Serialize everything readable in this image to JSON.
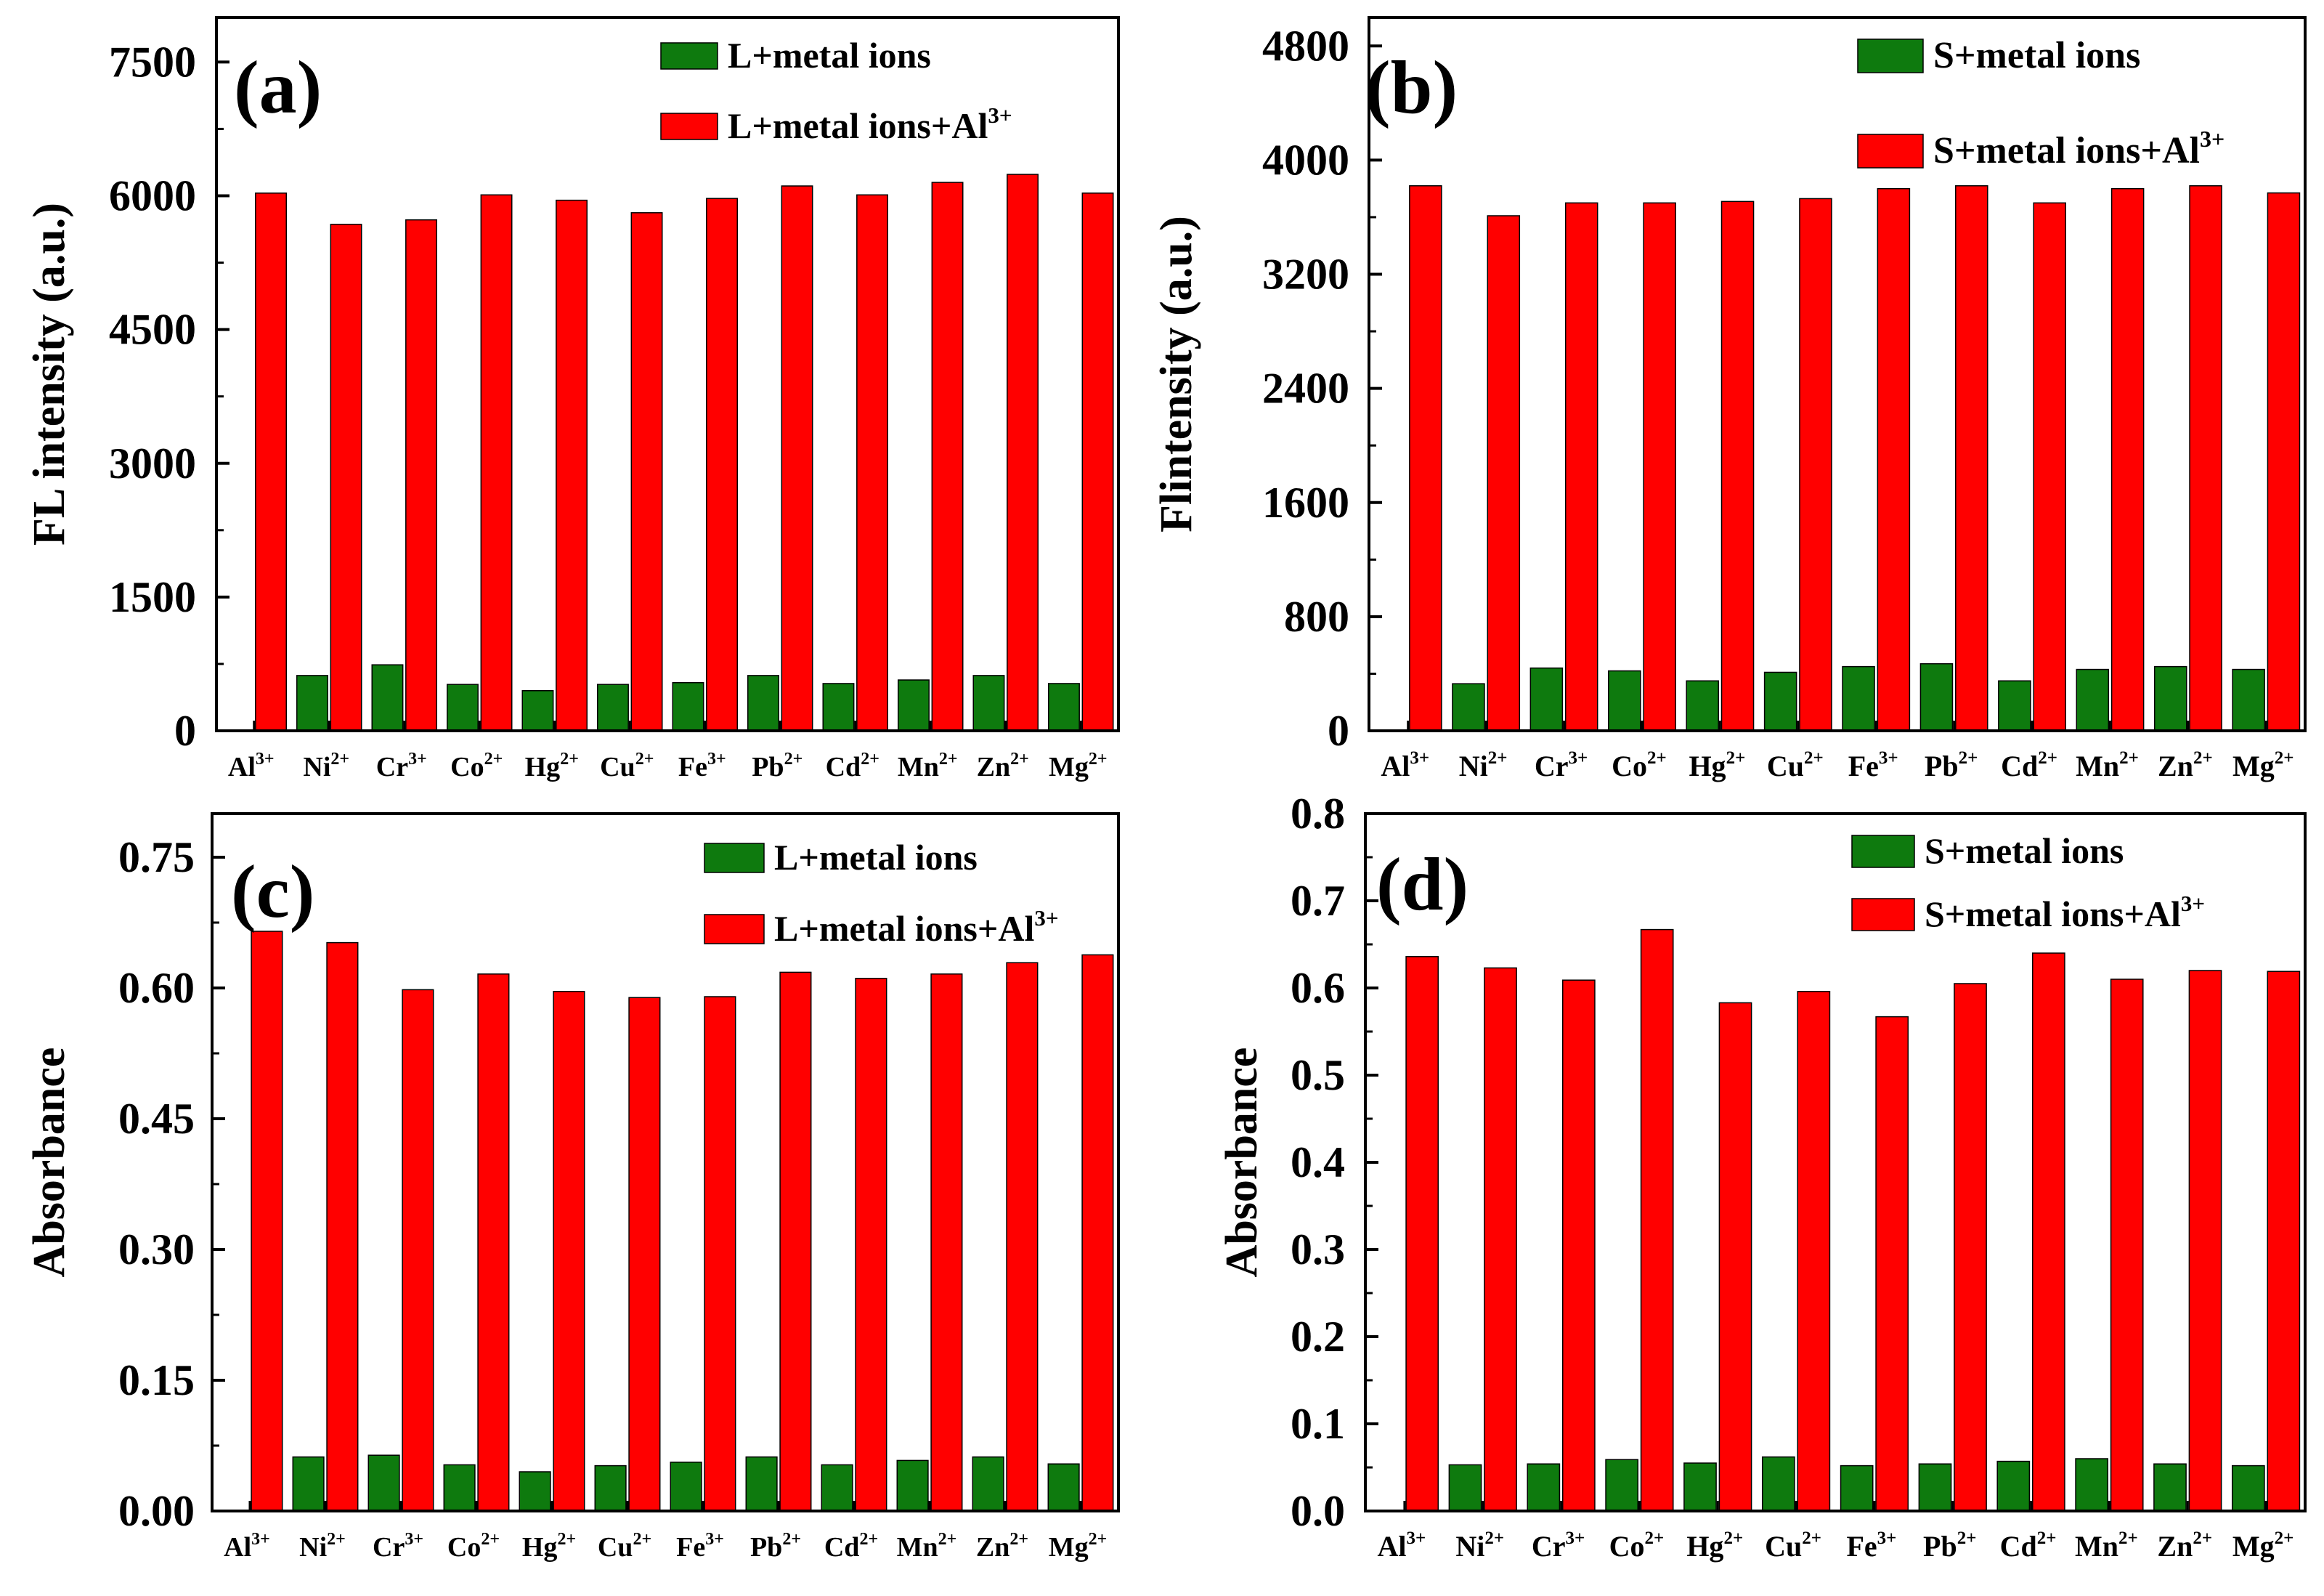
{
  "colors": {
    "series_green": "#0e7a0e",
    "series_red": "#ff0000",
    "axis": "#000000"
  },
  "chart_data": [
    {
      "type": "bar",
      "panel_label": "(a)",
      "ylabel": "FL intensity (a.u.)",
      "xlabel": "",
      "ylim": [
        0,
        8000
      ],
      "yticks": [
        "0",
        "1500",
        "3000",
        "4500",
        "6000",
        "7500"
      ],
      "ytick_values": [
        0,
        1500,
        3000,
        4500,
        6000,
        7500
      ],
      "categories": [
        {
          "base": "Al",
          "sup": "3+"
        },
        {
          "base": "Ni",
          "sup": "2+"
        },
        {
          "base": "Cr",
          "sup": "3+"
        },
        {
          "base": "Co",
          "sup": "2+"
        },
        {
          "base": "Hg",
          "sup": "2+"
        },
        {
          "base": "Cu",
          "sup": "2+"
        },
        {
          "base": "Fe",
          "sup": "3+"
        },
        {
          "base": "Pb",
          "sup": "2+"
        },
        {
          "base": "Cd",
          "sup": "2+"
        },
        {
          "base": "Mn",
          "sup": "2+"
        },
        {
          "base": "Zn",
          "sup": "2+"
        },
        {
          "base": "Mg",
          "sup": "2+"
        }
      ],
      "series": [
        {
          "name": "L+metal ions",
          "legend_base": "L+metal ions",
          "legend_sup": "",
          "color": "#0e7a0e",
          "values": [
            0,
            620,
            740,
            520,
            450,
            520,
            540,
            620,
            530,
            570,
            620,
            530
          ]
        },
        {
          "name": "L+metal ions+Al3+",
          "legend_base": "L+metal ions+Al",
          "legend_sup": "3+",
          "color": "#ff0000",
          "values": [
            6030,
            5680,
            5730,
            6010,
            5950,
            5810,
            5970,
            6110,
            6010,
            6150,
            6240,
            6030
          ]
        }
      ]
    },
    {
      "type": "bar",
      "panel_label": "(b)",
      "ylabel": "Flintensity (a.u.)",
      "xlabel": "",
      "ylim": [
        0,
        5000
      ],
      "yticks": [
        "0",
        "800",
        "1600",
        "2400",
        "3200",
        "4000",
        "4800"
      ],
      "ytick_values": [
        0,
        800,
        1600,
        2400,
        3200,
        4000,
        4800
      ],
      "categories": [
        {
          "base": "Al",
          "sup": "3+"
        },
        {
          "base": "Ni",
          "sup": "2+"
        },
        {
          "base": "Cr",
          "sup": "3+"
        },
        {
          "base": "Co",
          "sup": "2+"
        },
        {
          "base": "Hg",
          "sup": "2+"
        },
        {
          "base": "Cu",
          "sup": "2+"
        },
        {
          "base": "Fe",
          "sup": "3+"
        },
        {
          "base": "Pb",
          "sup": "2+"
        },
        {
          "base": "Cd",
          "sup": "2+"
        },
        {
          "base": "Mn",
          "sup": "2+"
        },
        {
          "base": "Zn",
          "sup": "2+"
        },
        {
          "base": "Mg",
          "sup": "2+"
        }
      ],
      "series": [
        {
          "name": "S+metal ions",
          "legend_base": "S+metal ions",
          "legend_sup": "",
          "color": "#0e7a0e",
          "values": [
            0,
            330,
            440,
            420,
            350,
            410,
            450,
            470,
            350,
            430,
            450,
            430
          ]
        },
        {
          "name": "S+metal ions+Al3+",
          "legend_base": "S+metal ions+Al",
          "legend_sup": "3+",
          "color": "#ff0000",
          "values": [
            3820,
            3610,
            3700,
            3700,
            3710,
            3730,
            3800,
            3820,
            3700,
            3800,
            3820,
            3770
          ]
        }
      ]
    },
    {
      "type": "bar",
      "panel_label": "(c)",
      "ylabel": "Absorbance",
      "xlabel": "",
      "ylim": [
        0,
        0.8
      ],
      "yticks": [
        "0.00",
        "0.15",
        "0.30",
        "0.45",
        "0.60",
        "0.75"
      ],
      "ytick_values": [
        0,
        0.15,
        0.3,
        0.45,
        0.6,
        0.75
      ],
      "categories": [
        {
          "base": "Al",
          "sup": "3+"
        },
        {
          "base": "Ni",
          "sup": "2+"
        },
        {
          "base": "Cr",
          "sup": "3+"
        },
        {
          "base": "Co",
          "sup": "2+"
        },
        {
          "base": "Hg",
          "sup": "2+"
        },
        {
          "base": "Cu",
          "sup": "2+"
        },
        {
          "base": "Fe",
          "sup": "3+"
        },
        {
          "base": "Pb",
          "sup": "2+"
        },
        {
          "base": "Cd",
          "sup": "2+"
        },
        {
          "base": "Mn",
          "sup": "2+"
        },
        {
          "base": "Zn",
          "sup": "2+"
        },
        {
          "base": "Mg",
          "sup": "2+"
        }
      ],
      "series": [
        {
          "name": "L+metal ions",
          "legend_base": "L+metal ions",
          "legend_sup": "",
          "color": "#0e7a0e",
          "values": [
            0,
            0.062,
            0.064,
            0.053,
            0.045,
            0.052,
            0.056,
            0.062,
            0.053,
            0.058,
            0.062,
            0.054
          ]
        },
        {
          "name": "L+metal ions+Al3+",
          "legend_base": "L+metal ions+Al",
          "legend_sup": "3+",
          "color": "#ff0000",
          "values": [
            0.665,
            0.652,
            0.598,
            0.616,
            0.596,
            0.589,
            0.59,
            0.618,
            0.611,
            0.616,
            0.629,
            0.638
          ]
        }
      ]
    },
    {
      "type": "bar",
      "panel_label": "(d)",
      "ylabel": "Absorbance",
      "xlabel": "",
      "ylim": [
        0,
        0.8
      ],
      "yticks": [
        "0.0",
        "0.1",
        "0.2",
        "0.3",
        "0.4",
        "0.5",
        "0.6",
        "0.7",
        "0.8"
      ],
      "ytick_values": [
        0,
        0.1,
        0.2,
        0.3,
        0.4,
        0.5,
        0.6,
        0.7,
        0.8
      ],
      "categories": [
        {
          "base": "Al",
          "sup": "3+"
        },
        {
          "base": "Ni",
          "sup": "2+"
        },
        {
          "base": "Cr",
          "sup": "3+"
        },
        {
          "base": "Co",
          "sup": "2+"
        },
        {
          "base": "Hg",
          "sup": "2+"
        },
        {
          "base": "Cu",
          "sup": "2+"
        },
        {
          "base": "Fe",
          "sup": "3+"
        },
        {
          "base": "Pb",
          "sup": "2+"
        },
        {
          "base": "Cd",
          "sup": "2+"
        },
        {
          "base": "Mn",
          "sup": "2+"
        },
        {
          "base": "Zn",
          "sup": "2+"
        },
        {
          "base": "Mg",
          "sup": "2+"
        }
      ],
      "series": [
        {
          "name": "S+metal ions",
          "legend_base": "S+metal ions",
          "legend_sup": "",
          "color": "#0e7a0e",
          "values": [
            0,
            0.053,
            0.054,
            0.059,
            0.055,
            0.062,
            0.052,
            0.054,
            0.057,
            0.06,
            0.054,
            0.052
          ]
        },
        {
          "name": "S+metal ions+Al3+",
          "legend_base": "S+metal ions+Al",
          "legend_sup": "3+",
          "color": "#ff0000",
          "values": [
            0.636,
            0.623,
            0.609,
            0.667,
            0.583,
            0.596,
            0.567,
            0.605,
            0.64,
            0.61,
            0.62,
            0.619
          ]
        }
      ]
    }
  ]
}
